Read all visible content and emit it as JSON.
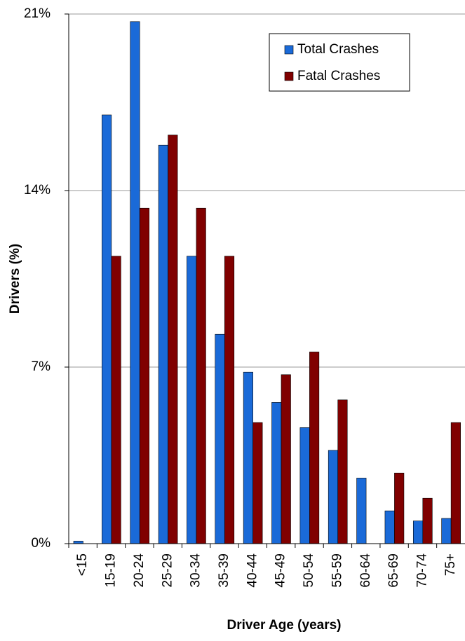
{
  "chart_data": {
    "type": "bar",
    "x_label": "Driver Age (years)",
    "y_label": "Drivers (%)",
    "categories": [
      "<15",
      "15-19",
      "20-24",
      "25-29",
      "30-34",
      "35-39",
      "40-44",
      "45-49",
      "50-54",
      "55-59",
      "60-64",
      "65-69",
      "70-74",
      "75+"
    ],
    "series": [
      {
        "name": "Total Crashes",
        "color": "#1a6ad8",
        "values": [
          0.1,
          17.0,
          20.7,
          15.8,
          11.4,
          8.3,
          6.8,
          5.6,
          4.6,
          3.7,
          2.6,
          1.3,
          0.9,
          1.0
        ]
      },
      {
        "name": "Fatal Crashes",
        "color": "#800000",
        "values": [
          0,
          11.4,
          13.3,
          16.2,
          13.3,
          11.4,
          4.8,
          6.7,
          7.6,
          5.7,
          0,
          2.8,
          1.8,
          4.8
        ]
      }
    ],
    "ylim": [
      0,
      21
    ],
    "yticks": [
      {
        "value": 0,
        "label": "0%"
      },
      {
        "value": 7,
        "label": "7%"
      },
      {
        "value": 14,
        "label": "14%"
      },
      {
        "value": 21,
        "label": "21%"
      }
    ],
    "grid": true,
    "legend": "top-right"
  }
}
